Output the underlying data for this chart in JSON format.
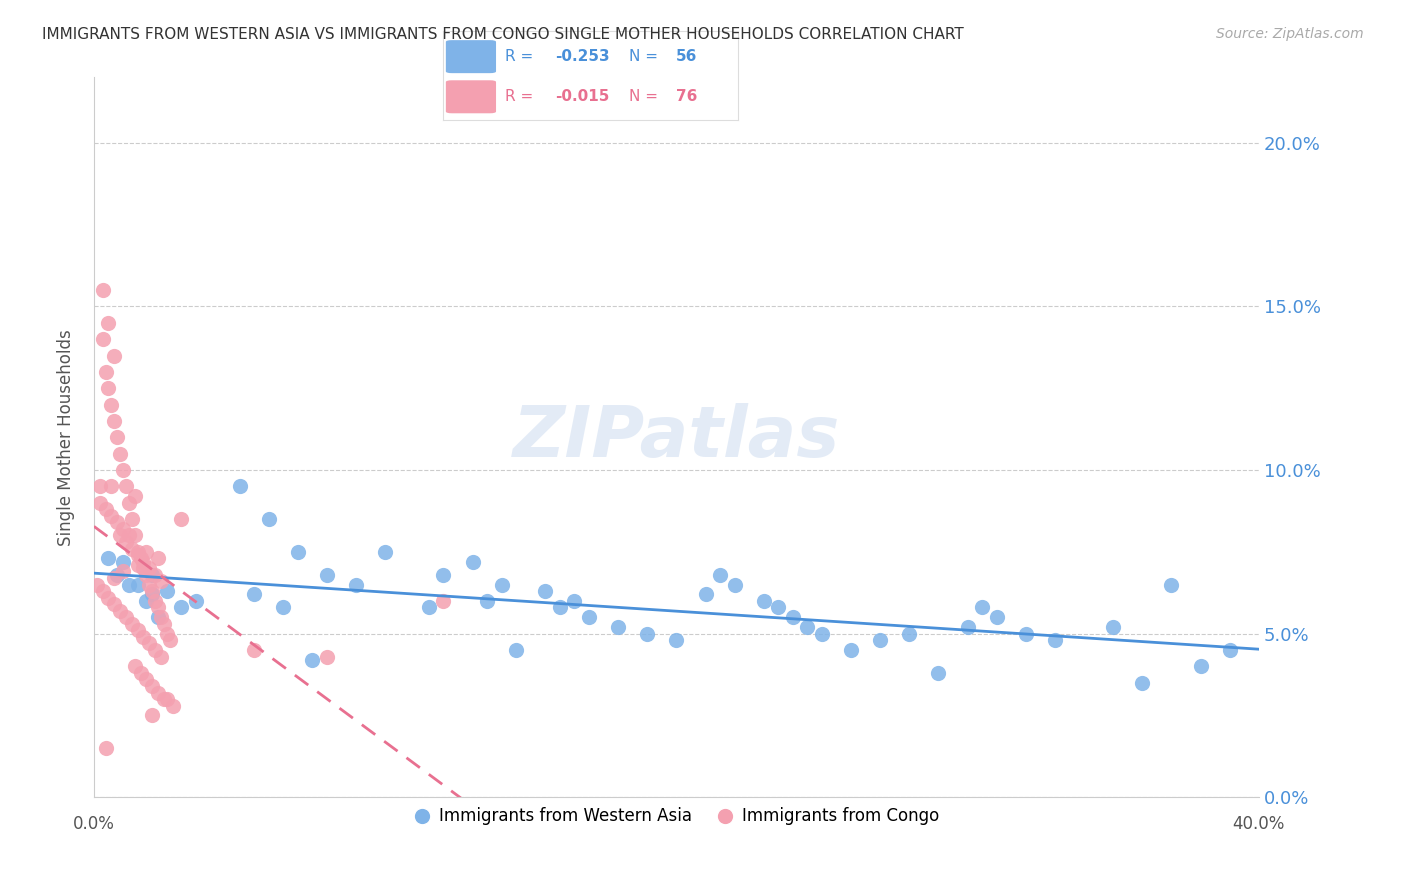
{
  "title": "IMMIGRANTS FROM WESTERN ASIA VS IMMIGRANTS FROM CONGO SINGLE MOTHER HOUSEHOLDS CORRELATION CHART",
  "source": "Source: ZipAtlas.com",
  "ylabel": "Single Mother Households",
  "ytick_values": [
    0.0,
    0.05,
    0.1,
    0.15,
    0.2
  ],
  "xlim": [
    0.0,
    0.4
  ],
  "ylim": [
    0.0,
    0.22
  ],
  "color_blue": "#7fb3e8",
  "color_pink": "#f4a0b0",
  "color_blue_line": "#4a90d9",
  "color_pink_line": "#e87090",
  "color_blue_text": "#4a90d9",
  "color_pink_text": "#e87090",
  "watermark": "ZIPatlas",
  "blue_x": [
    0.02,
    0.025,
    0.03,
    0.035,
    0.01,
    0.015,
    0.02,
    0.05,
    0.06,
    0.07,
    0.08,
    0.09,
    0.1,
    0.12,
    0.13,
    0.14,
    0.155,
    0.16,
    0.165,
    0.17,
    0.18,
    0.19,
    0.2,
    0.21,
    0.22,
    0.23,
    0.24,
    0.245,
    0.25,
    0.26,
    0.27,
    0.28,
    0.29,
    0.3,
    0.31,
    0.32,
    0.33,
    0.35,
    0.37,
    0.38,
    0.005,
    0.008,
    0.012,
    0.018,
    0.022,
    0.055,
    0.065,
    0.075,
    0.115,
    0.135,
    0.145,
    0.215,
    0.235,
    0.305,
    0.36,
    0.39
  ],
  "blue_y": [
    0.068,
    0.063,
    0.058,
    0.06,
    0.072,
    0.065,
    0.062,
    0.095,
    0.085,
    0.075,
    0.068,
    0.065,
    0.075,
    0.068,
    0.072,
    0.065,
    0.063,
    0.058,
    0.06,
    0.055,
    0.052,
    0.05,
    0.048,
    0.062,
    0.065,
    0.06,
    0.055,
    0.052,
    0.05,
    0.045,
    0.048,
    0.05,
    0.038,
    0.052,
    0.055,
    0.05,
    0.048,
    0.052,
    0.065,
    0.04,
    0.073,
    0.068,
    0.065,
    0.06,
    0.055,
    0.062,
    0.058,
    0.042,
    0.058,
    0.06,
    0.045,
    0.068,
    0.058,
    0.058,
    0.035,
    0.045
  ],
  "pink_x": [
    0.002,
    0.003,
    0.004,
    0.005,
    0.006,
    0.007,
    0.008,
    0.009,
    0.01,
    0.011,
    0.012,
    0.013,
    0.014,
    0.015,
    0.016,
    0.017,
    0.018,
    0.019,
    0.02,
    0.021,
    0.022,
    0.023,
    0.024,
    0.025,
    0.026,
    0.003,
    0.005,
    0.007,
    0.009,
    0.011,
    0.013,
    0.015,
    0.017,
    0.019,
    0.021,
    0.023,
    0.002,
    0.004,
    0.006,
    0.008,
    0.01,
    0.012,
    0.014,
    0.016,
    0.018,
    0.02,
    0.022,
    0.024,
    0.001,
    0.003,
    0.005,
    0.007,
    0.009,
    0.011,
    0.013,
    0.015,
    0.017,
    0.019,
    0.021,
    0.023,
    0.055,
    0.08,
    0.12,
    0.025,
    0.027,
    0.018,
    0.022,
    0.015,
    0.01,
    0.007,
    0.02,
    0.03,
    0.004,
    0.006,
    0.014
  ],
  "pink_y": [
    0.095,
    0.14,
    0.13,
    0.125,
    0.12,
    0.115,
    0.11,
    0.105,
    0.1,
    0.095,
    0.09,
    0.085,
    0.08,
    0.075,
    0.073,
    0.07,
    0.068,
    0.065,
    0.063,
    0.06,
    0.058,
    0.055,
    0.053,
    0.05,
    0.048,
    0.155,
    0.145,
    0.135,
    0.08,
    0.078,
    0.076,
    0.074,
    0.072,
    0.07,
    0.068,
    0.066,
    0.09,
    0.088,
    0.086,
    0.084,
    0.082,
    0.08,
    0.04,
    0.038,
    0.036,
    0.034,
    0.032,
    0.03,
    0.065,
    0.063,
    0.061,
    0.059,
    0.057,
    0.055,
    0.053,
    0.051,
    0.049,
    0.047,
    0.045,
    0.043,
    0.045,
    0.043,
    0.06,
    0.03,
    0.028,
    0.075,
    0.073,
    0.071,
    0.069,
    0.067,
    0.025,
    0.085,
    0.015,
    0.095,
    0.092
  ]
}
